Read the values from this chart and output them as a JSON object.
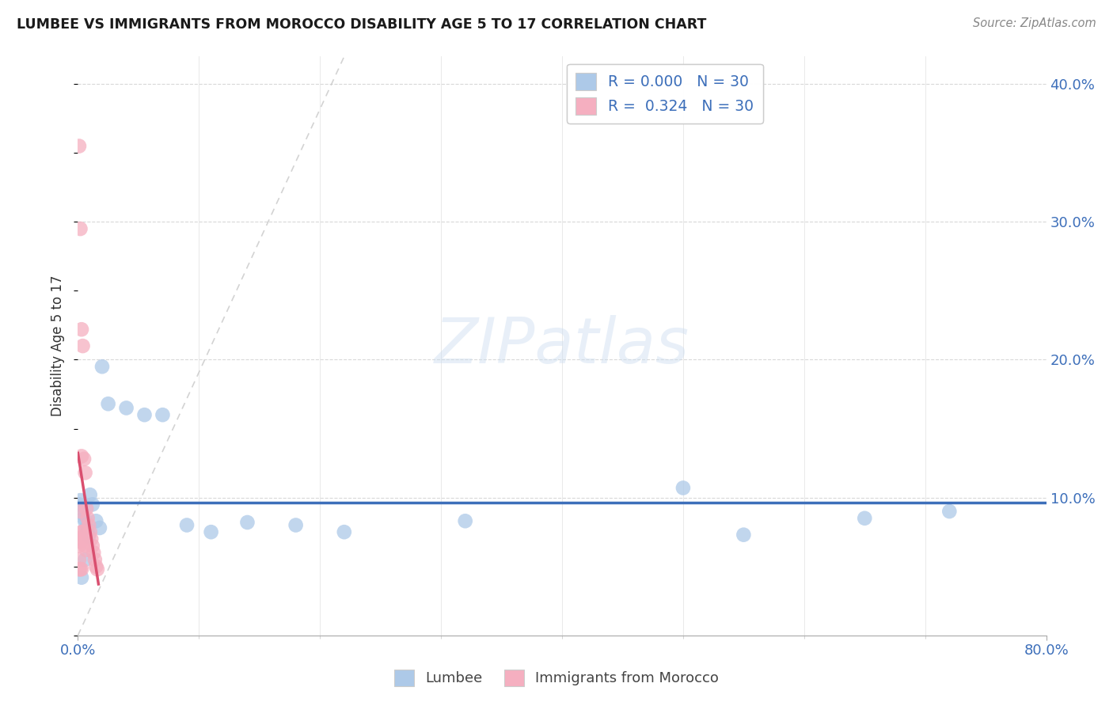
{
  "title": "LUMBEE VS IMMIGRANTS FROM MOROCCO DISABILITY AGE 5 TO 17 CORRELATION CHART",
  "source": "Source: ZipAtlas.com",
  "ylabel": "Disability Age 5 to 17",
  "xlim": [
    0.0,
    0.8
  ],
  "ylim": [
    0.0,
    0.42
  ],
  "lumbee_R": "0.000",
  "lumbee_N": "30",
  "morocco_R": "0.324",
  "morocco_N": "30",
  "lumbee_color": "#adc9e8",
  "morocco_color": "#f5afc0",
  "lumbee_line_color": "#3d6fba",
  "morocco_line_color": "#d94f6f",
  "lumbee_x": [
    0.001,
    0.002,
    0.003,
    0.004,
    0.005,
    0.006,
    0.007,
    0.008,
    0.009,
    0.01,
    0.012,
    0.015,
    0.018,
    0.02,
    0.025,
    0.04,
    0.055,
    0.07,
    0.09,
    0.11,
    0.14,
    0.18,
    0.22,
    0.32,
    0.5,
    0.55,
    0.65,
    0.72,
    0.003,
    0.006
  ],
  "lumbee_y": [
    0.095,
    0.098,
    0.092,
    0.088,
    0.085,
    0.082,
    0.078,
    0.075,
    0.072,
    0.102,
    0.095,
    0.083,
    0.078,
    0.195,
    0.168,
    0.165,
    0.16,
    0.16,
    0.08,
    0.075,
    0.082,
    0.08,
    0.075,
    0.083,
    0.107,
    0.073,
    0.085,
    0.09,
    0.042,
    0.055
  ],
  "morocco_x": [
    0.001,
    0.001,
    0.001,
    0.001,
    0.001,
    0.002,
    0.002,
    0.002,
    0.002,
    0.003,
    0.003,
    0.003,
    0.003,
    0.004,
    0.004,
    0.005,
    0.005,
    0.006,
    0.006,
    0.007,
    0.007,
    0.008,
    0.009,
    0.01,
    0.011,
    0.012,
    0.013,
    0.014,
    0.015,
    0.016
  ],
  "morocco_y": [
    0.355,
    0.07,
    0.065,
    0.055,
    0.048,
    0.295,
    0.09,
    0.068,
    0.048,
    0.222,
    0.13,
    0.075,
    0.048,
    0.21,
    0.075,
    0.128,
    0.072,
    0.118,
    0.065,
    0.092,
    0.062,
    0.085,
    0.08,
    0.075,
    0.07,
    0.065,
    0.06,
    0.055,
    0.05,
    0.048
  ],
  "background_color": "#ffffff"
}
